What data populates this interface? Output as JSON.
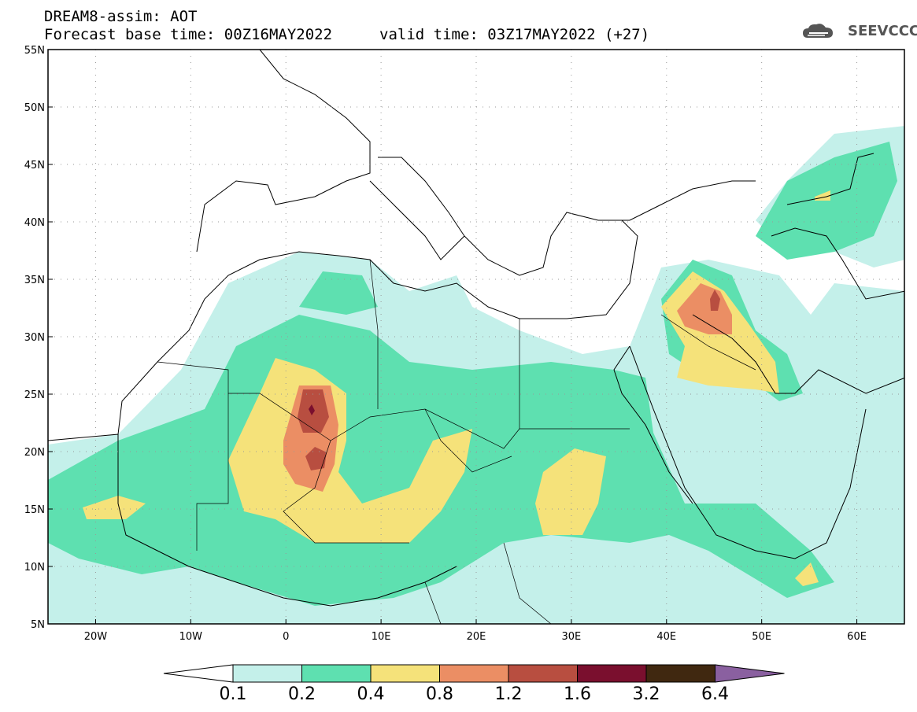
{
  "header": {
    "title": "DREAM8-assim: AOT",
    "forecast_base": "Forecast base time: 00Z16MAY2022",
    "valid_time": "valid time: 03Z17MAY2022 (+27)"
  },
  "logo": {
    "name": "cloud-logo-icon",
    "text": "SEEVCCC"
  },
  "map": {
    "lon_range": [
      -25,
      65
    ],
    "lat_range": [
      5,
      55
    ],
    "lat_ticks": [
      "5N",
      "10N",
      "15N",
      "20N",
      "25N",
      "30N",
      "35N",
      "40N",
      "45N",
      "50N",
      "55N"
    ],
    "lon_ticks": [
      "20W",
      "10W",
      "0",
      "10E",
      "20E",
      "30E",
      "40E",
      "50E",
      "60E"
    ],
    "grid": true
  },
  "colorbar": {
    "levels": [
      "0.1",
      "0.2",
      "0.4",
      "0.8",
      "1.2",
      "1.6",
      "3.2",
      "6.4"
    ],
    "colors": [
      "#c4f0ea",
      "#5ee0b0",
      "#f5e27a",
      "#eb8e64",
      "#b84e40",
      "#7a0f2e",
      "#402810",
      "#8a60a0"
    ]
  }
}
